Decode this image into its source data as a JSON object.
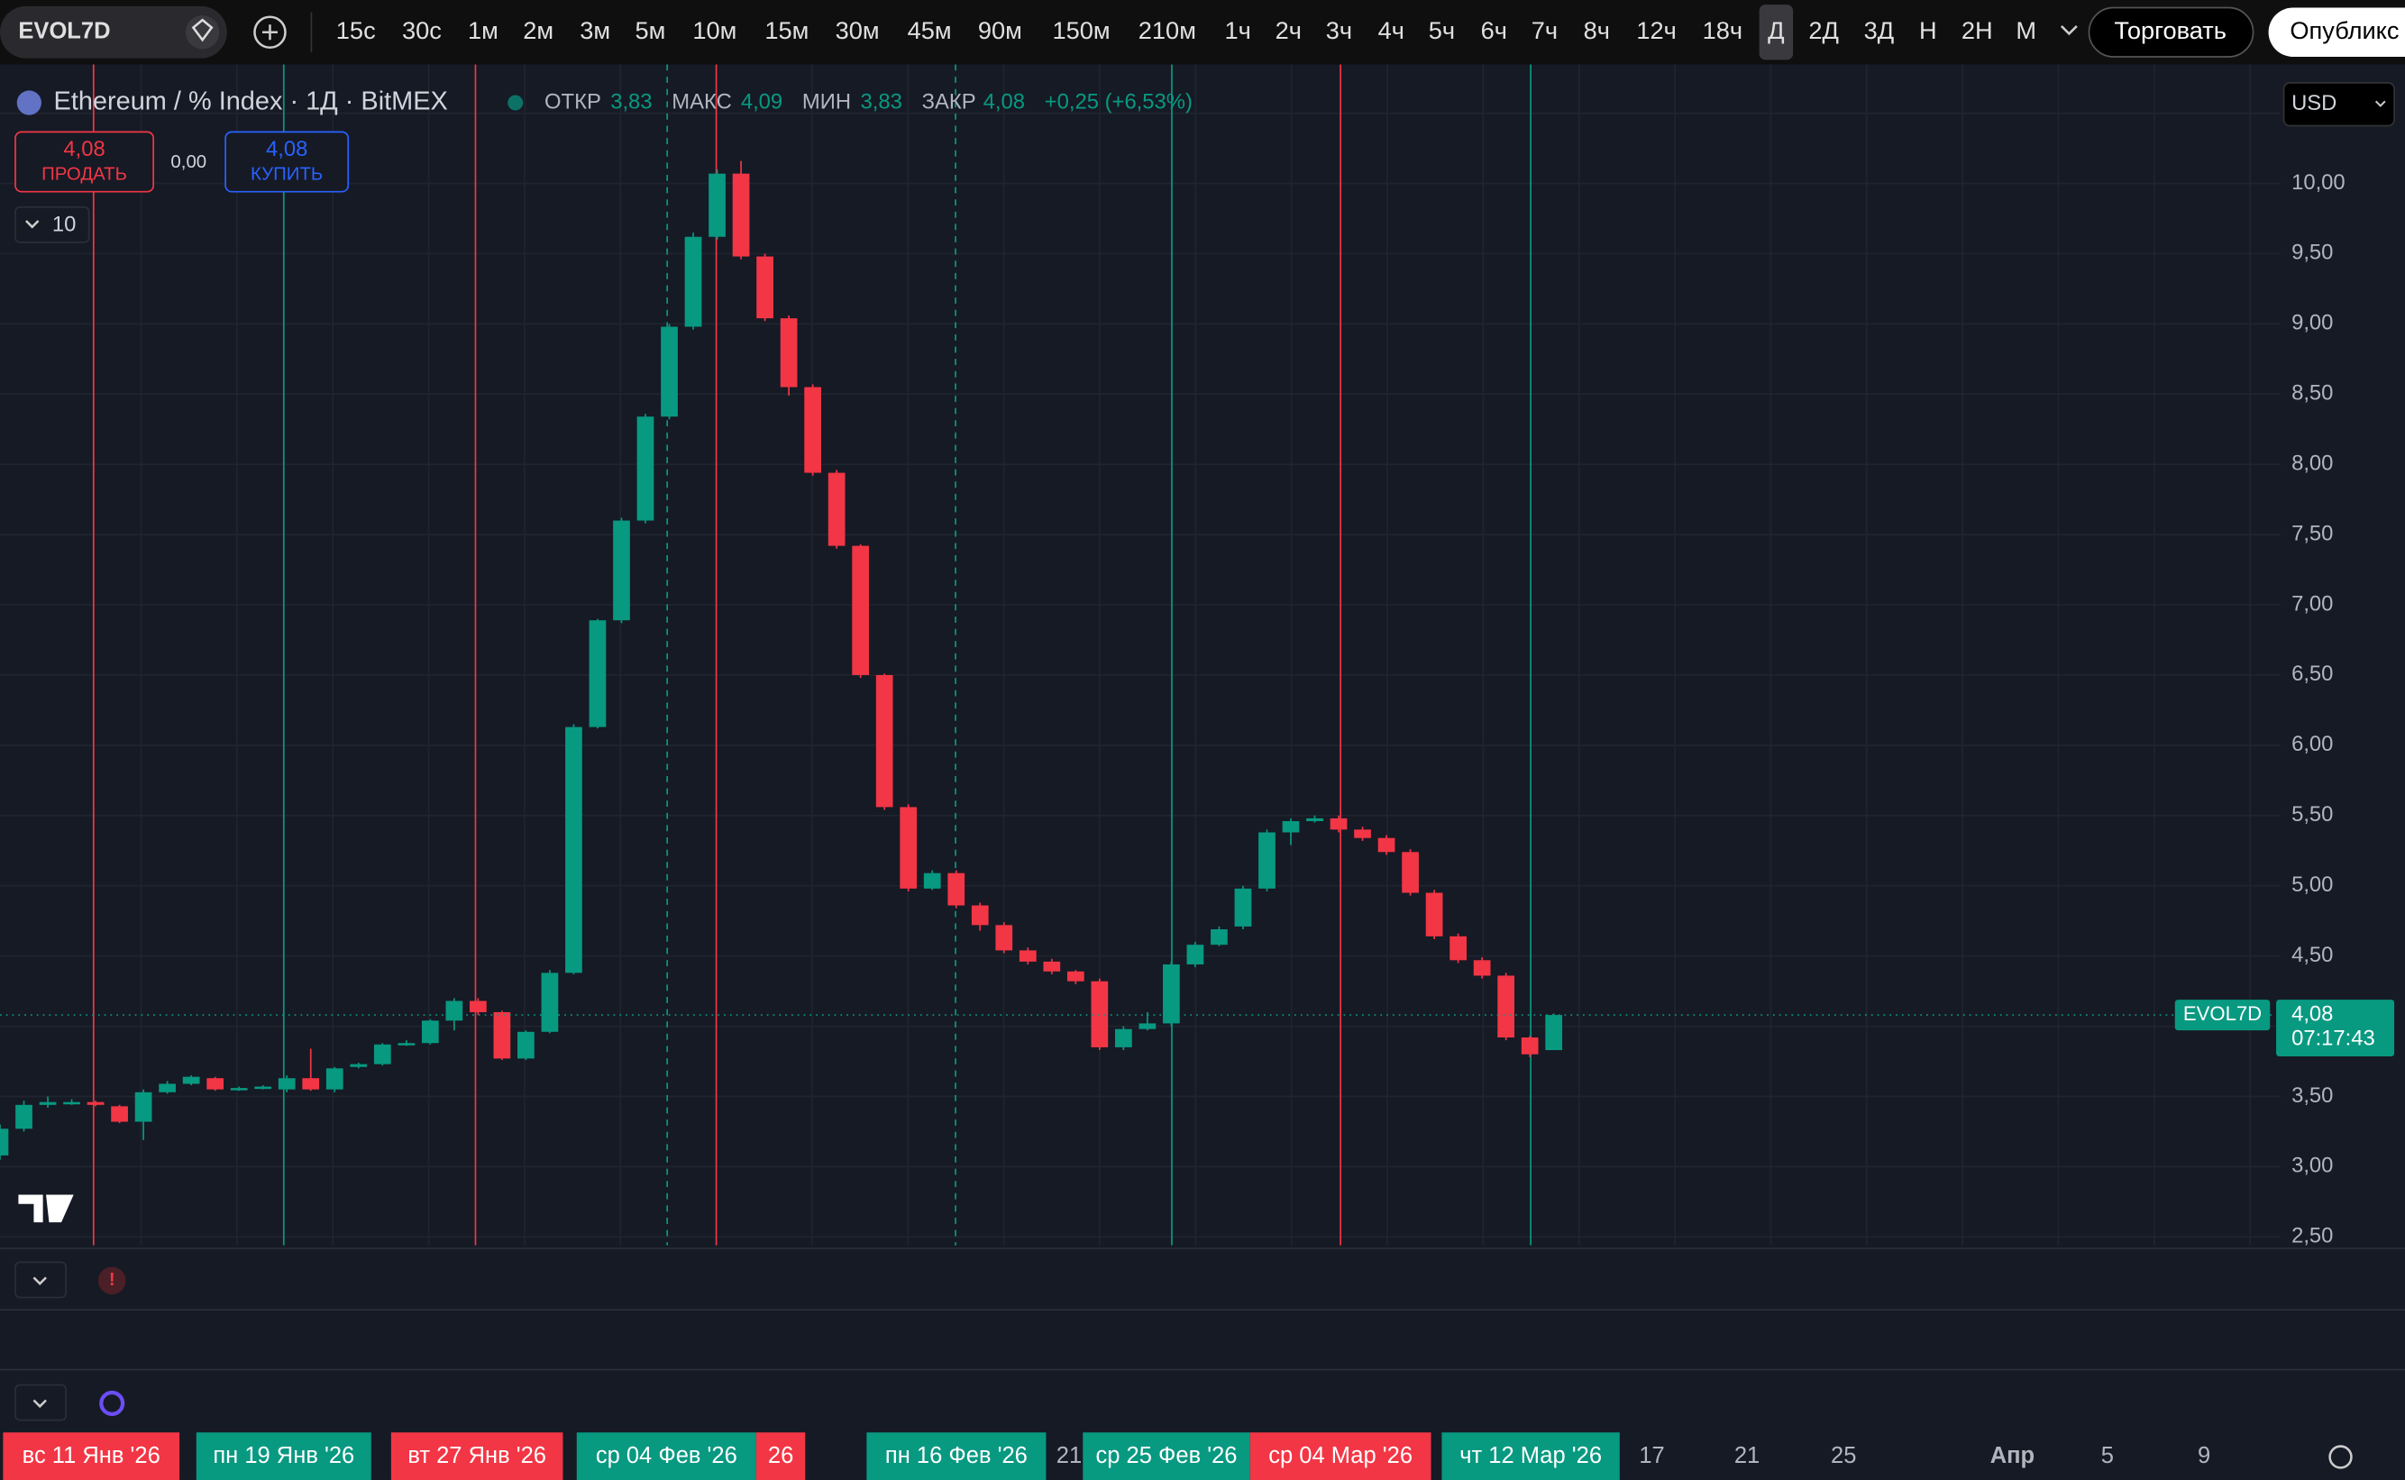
{
  "toolbar": {
    "symbol": "EVOL7D",
    "intervals": [
      "15с",
      "30с",
      "1м",
      "2м",
      "3м",
      "5м",
      "10м",
      "15м",
      "30м",
      "45м",
      "90м",
      "150м",
      "210м",
      "1ч",
      "2ч",
      "3ч",
      "4ч",
      "5ч",
      "6ч",
      "7ч",
      "8ч",
      "12ч",
      "18ч",
      "Д",
      "2Д",
      "3Д",
      "Н",
      "2Н",
      "М"
    ],
    "trade_button": "Торговать",
    "publish_button": "Опубликс"
  },
  "legend": {
    "title": "Ethereum / % Index · 1Д · BitMEX",
    "open_label": "ОТКР",
    "open": "3,83",
    "high_label": "МАКС",
    "high": "4,09",
    "low_label": "МИН",
    "low": "3,83",
    "close_label": "ЗАКР",
    "close": "4,08",
    "change": "+0,25 (+6,53%)"
  },
  "order_panel": {
    "sell_price": "4,08",
    "sell_label": "ПРОДАТЬ",
    "spread": "0,00",
    "buy_price": "4,08",
    "buy_label": "КУПИТЬ",
    "quantity": "10"
  },
  "currency": "USD",
  "chart_data": {
    "type": "candlestick",
    "open": [
      3.08,
      3.27,
      3.44,
      3.45,
      3.46,
      3.43,
      3.32,
      3.53,
      3.59,
      3.63,
      3.55,
      3.56,
      3.55,
      3.63,
      3.55,
      3.71,
      3.73,
      3.87,
      3.88,
      4.04,
      4.18,
      4.1,
      3.77,
      3.96,
      4.38,
      6.13,
      6.89,
      7.6,
      8.34,
      8.98,
      9.62,
      10.07,
      9.48,
      9.04,
      8.55,
      7.94,
      7.42,
      6.5,
      5.56,
      4.98,
      5.09,
      4.86,
      4.72,
      4.54,
      4.46,
      4.39,
      4.32,
      3.85,
      3.98,
      4.02,
      4.44,
      4.58,
      4.71,
      4.98,
      5.38,
      5.46,
      5.48,
      5.4,
      5.34,
      5.24,
      4.95,
      4.64,
      4.47,
      4.36,
      3.92,
      3.83
    ],
    "high": [
      3.3,
      3.47,
      3.5,
      3.48,
      3.47,
      3.44,
      3.55,
      3.61,
      3.65,
      3.64,
      3.57,
      3.58,
      3.65,
      3.84,
      3.71,
      3.74,
      3.88,
      3.9,
      4.05,
      4.2,
      4.2,
      4.11,
      3.97,
      4.4,
      6.15,
      6.9,
      7.62,
      8.36,
      9.0,
      9.65,
      10.1,
      10.16,
      9.5,
      9.06,
      8.57,
      7.96,
      7.43,
      6.51,
      5.58,
      5.11,
      5.11,
      4.88,
      4.74,
      4.56,
      4.48,
      4.4,
      4.34,
      4.0,
      4.1,
      4.46,
      4.6,
      4.71,
      5.0,
      5.4,
      5.48,
      5.5,
      5.5,
      5.42,
      5.36,
      5.26,
      4.97,
      4.66,
      4.49,
      4.38,
      3.93,
      4.09
    ],
    "low": [
      3.05,
      3.25,
      3.42,
      3.44,
      3.43,
      3.31,
      3.19,
      3.52,
      3.58,
      3.54,
      3.54,
      3.55,
      3.53,
      3.54,
      3.53,
      3.7,
      3.72,
      3.86,
      3.87,
      3.97,
      4.08,
      3.76,
      3.76,
      3.95,
      4.37,
      6.12,
      6.87,
      7.58,
      8.32,
      8.96,
      9.6,
      9.46,
      9.02,
      8.49,
      7.92,
      7.4,
      6.48,
      5.54,
      4.96,
      4.97,
      4.84,
      4.68,
      4.52,
      4.44,
      4.37,
      4.3,
      3.83,
      3.83,
      3.97,
      4.0,
      4.42,
      4.57,
      4.69,
      4.96,
      5.29,
      5.45,
      5.38,
      5.32,
      5.22,
      4.93,
      4.62,
      4.45,
      4.34,
      3.9,
      3.78,
      3.83
    ],
    "close": [
      3.27,
      3.44,
      3.46,
      3.46,
      3.44,
      3.32,
      3.53,
      3.59,
      3.64,
      3.55,
      3.56,
      3.57,
      3.63,
      3.55,
      3.7,
      3.73,
      3.87,
      3.88,
      4.04,
      4.18,
      4.1,
      3.77,
      3.96,
      4.38,
      6.13,
      6.89,
      7.6,
      8.34,
      8.98,
      9.62,
      10.07,
      9.48,
      9.04,
      8.55,
      7.94,
      7.42,
      6.5,
      5.56,
      4.98,
      5.09,
      4.86,
      4.72,
      4.54,
      4.46,
      4.39,
      4.32,
      3.85,
      3.98,
      4.02,
      4.44,
      4.58,
      4.69,
      4.98,
      5.38,
      5.46,
      5.48,
      5.4,
      5.34,
      5.24,
      4.95,
      4.64,
      4.47,
      4.36,
      3.92,
      3.8,
      4.08
    ],
    "up_color": "#089981",
    "down_color": "#f23645",
    "ylim": [
      2.44,
      10.76
    ],
    "yticks": [
      {
        "value": 2.5,
        "label": "2,50"
      },
      {
        "value": 3,
        "label": "3,00"
      },
      {
        "value": 3.5,
        "label": "3,50"
      },
      {
        "value": 4,
        "label": "4,00"
      },
      {
        "value": 4.5,
        "label": "4,50"
      },
      {
        "value": 5,
        "label": "5,00"
      },
      {
        "value": 5.5,
        "label": "5,50"
      },
      {
        "value": 6,
        "label": "6,00"
      },
      {
        "value": 6.5,
        "label": "6,50"
      },
      {
        "value": 7,
        "label": "7,00"
      },
      {
        "value": 7.5,
        "label": "7,50"
      },
      {
        "value": 8,
        "label": "8,00"
      },
      {
        "value": 8.5,
        "label": "8,50"
      },
      {
        "value": 9,
        "label": "9,00"
      },
      {
        "value": 9.5,
        "label": "9,50"
      },
      {
        "value": 10,
        "label": "10,00"
      },
      {
        "value": 10.5,
        "label": "10,50"
      }
    ],
    "grid": true,
    "last_price": {
      "value": 4.08,
      "label": "4,08"
    },
    "symbol_tag": "EVOL7D",
    "countdown": "07:17:43"
  },
  "time_axis": {
    "labels": [
      "вс 11 Янв '26",
      "пн 19 Янв '26",
      "вт 27 Янв '26",
      "26",
      "ср 04 Фев '26",
      "пн 16 Фев '26",
      "21",
      "ср 25 Фев '26",
      "ср 04 Мар '26",
      "чт 12 Мар '26",
      "17",
      "21",
      "25",
      "Апр",
      "5",
      "9"
    ]
  }
}
